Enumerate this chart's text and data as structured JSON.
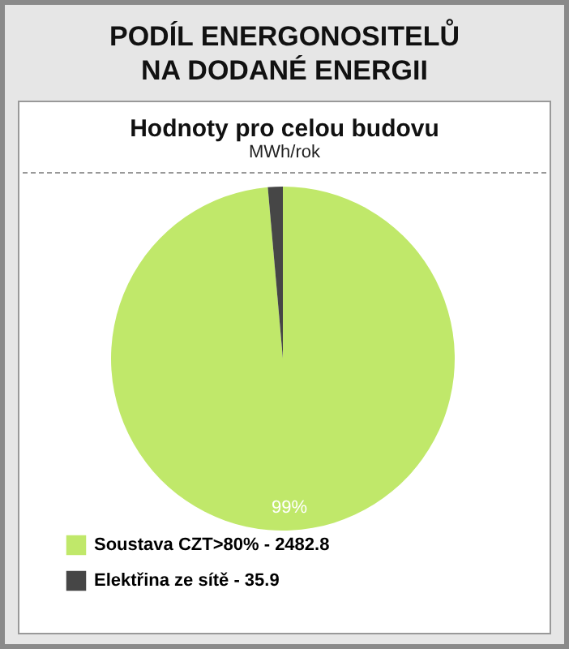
{
  "chart_data": {
    "type": "pie",
    "title": "PODÍL ENERGONOSITELŮ NA DODANÉ ENERGII",
    "subtitle": "Hodnoty pro celou budovu",
    "annotations": [
      "MWh/rok"
    ],
    "categories": [
      "Soustava CZT>80% - 2482.8",
      "Elektřina  ze sítě  - 35.9"
    ],
    "values": [
      98.6,
      1.4
    ],
    "colors": [
      "#c0e86a",
      "#464646"
    ],
    "value_labels": [
      "99%",
      null
    ],
    "legend": "bottom left"
  }
}
